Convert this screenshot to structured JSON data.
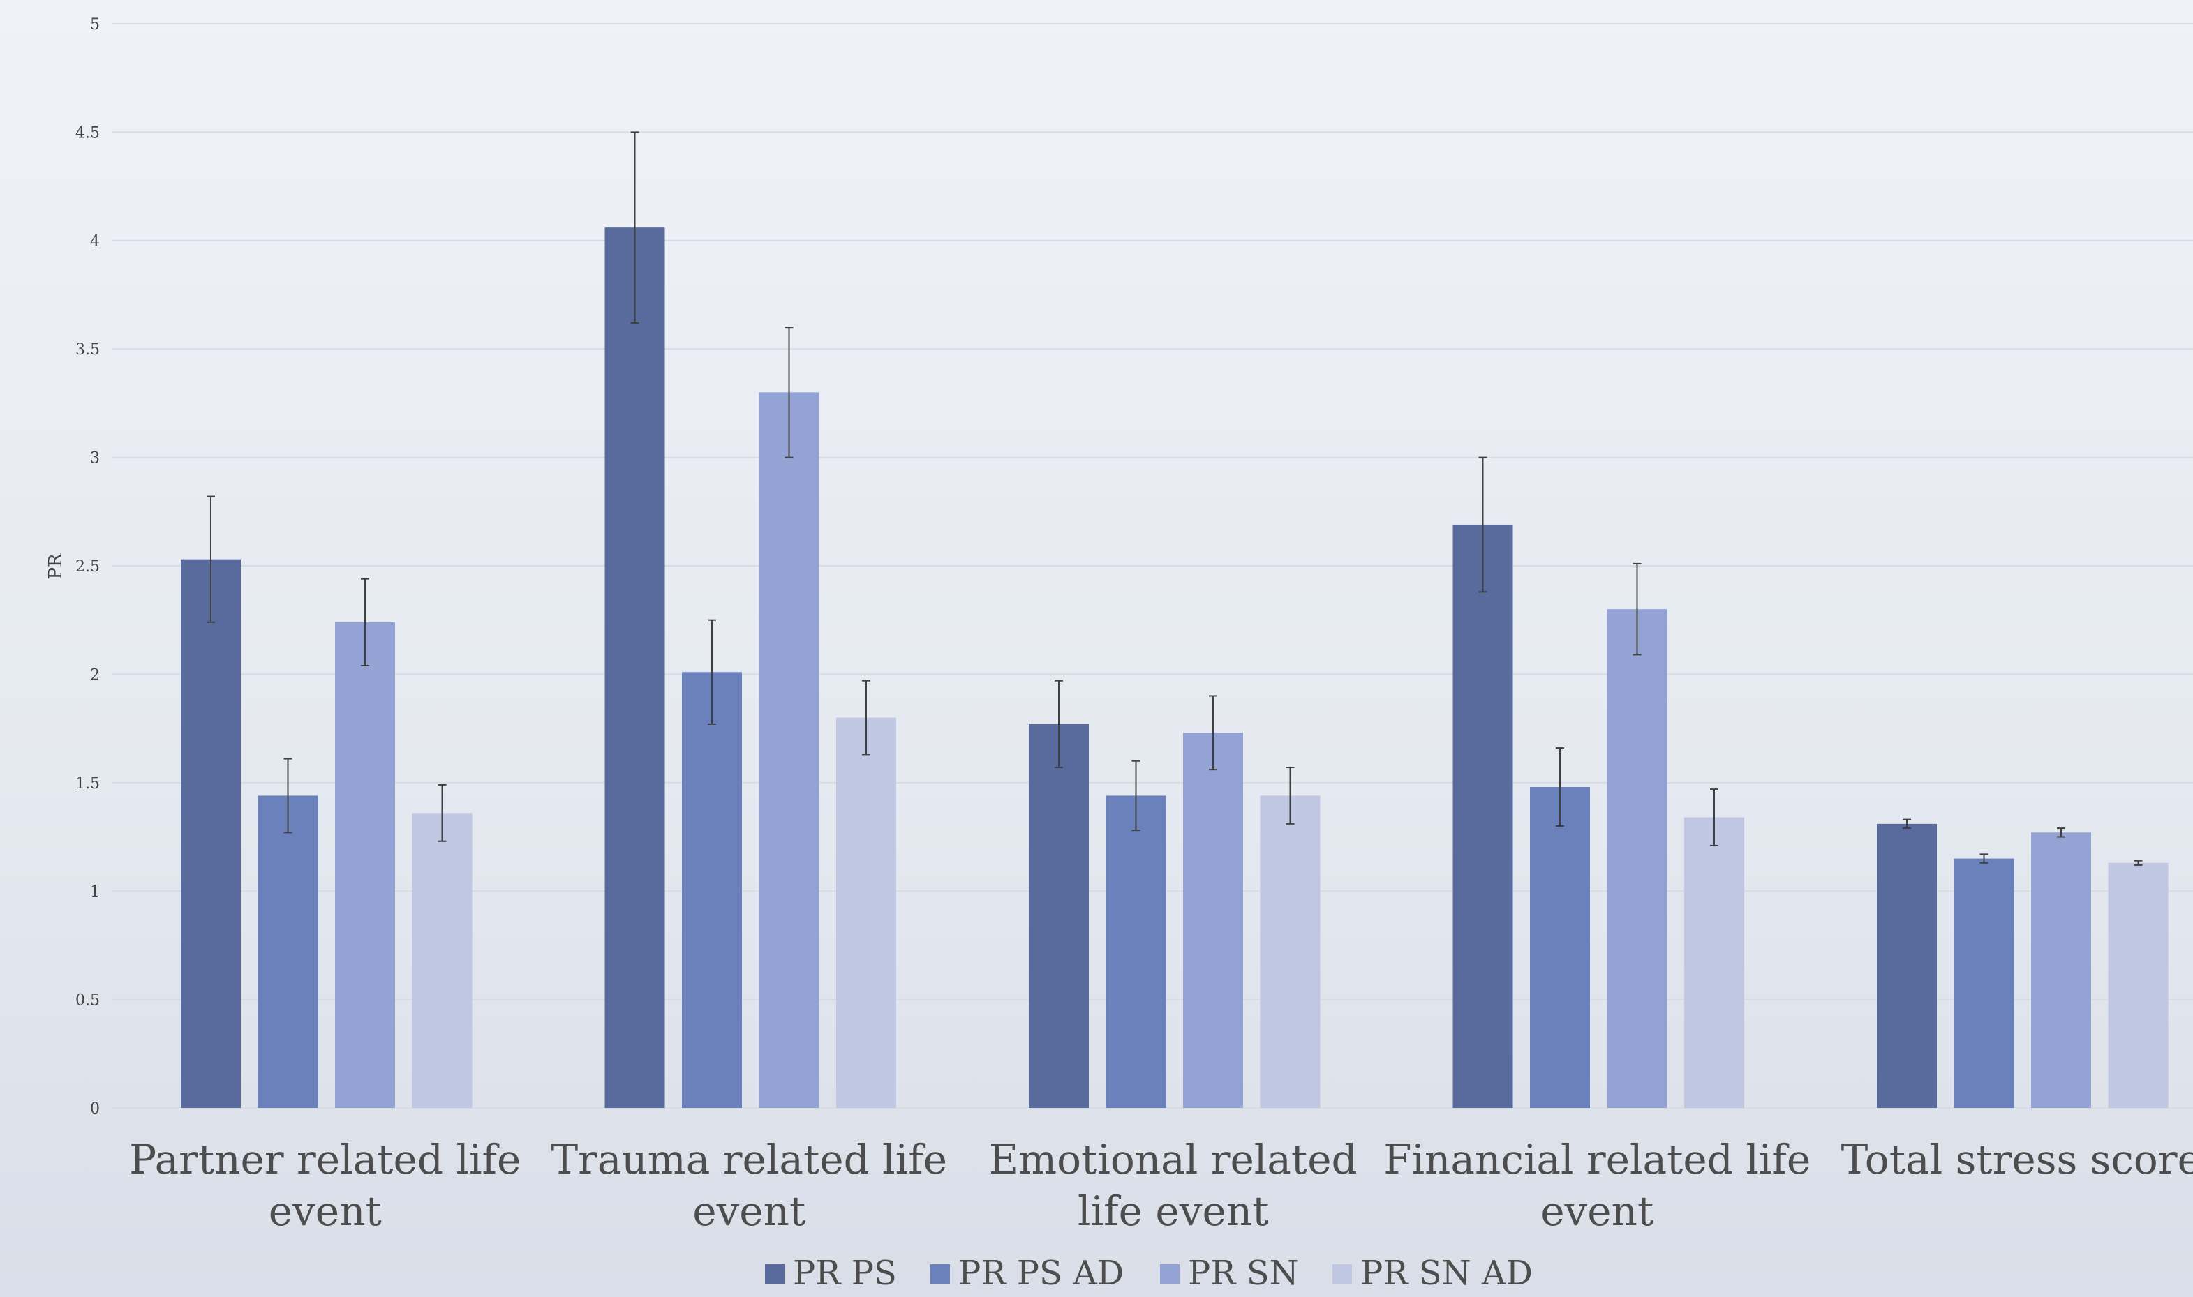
{
  "colors": {
    "PR PS": "#596a9c",
    "PR PS AD": "#6a81bb",
    "PR SN": "#93a3d4",
    "PR SN AD": "#bfc7e2",
    "grid": "#d7dce4",
    "error_bar": "#404040"
  },
  "chart_data": {
    "type": "bar",
    "title": "",
    "xlabel": "",
    "ylabel": "PR",
    "ylim": [
      0,
      5
    ],
    "yticks": [
      0,
      0.5,
      1,
      1.5,
      2,
      2.5,
      3,
      3.5,
      4,
      4.5,
      5
    ],
    "ytick_labels": [
      "0",
      "0.5",
      "1",
      "1.5",
      "2",
      "2.5",
      "3",
      "3.5",
      "4",
      "4.5",
      "5"
    ],
    "grid": true,
    "legend_position": "bottom",
    "categories": [
      "Partner related life event",
      "Trauma related life event",
      "Emotional related life event",
      "Financial related life event",
      "Total stress score"
    ],
    "series": [
      {
        "name": "PR PS",
        "values": [
          2.53,
          4.06,
          1.77,
          2.69,
          1.31
        ],
        "error": [
          0.29,
          0.44,
          0.2,
          0.31,
          0.02
        ]
      },
      {
        "name": "PR PS AD",
        "values": [
          1.44,
          2.01,
          1.44,
          1.48,
          1.15
        ],
        "error": [
          0.17,
          0.24,
          0.16,
          0.18,
          0.02
        ]
      },
      {
        "name": "PR SN",
        "values": [
          2.24,
          3.3,
          1.73,
          2.3,
          1.27
        ],
        "error": [
          0.2,
          0.3,
          0.17,
          0.21,
          0.02
        ]
      },
      {
        "name": "PR SN AD",
        "values": [
          1.36,
          1.8,
          1.44,
          1.34,
          1.13
        ],
        "error": [
          0.13,
          0.17,
          0.13,
          0.13,
          0.01
        ]
      }
    ]
  }
}
